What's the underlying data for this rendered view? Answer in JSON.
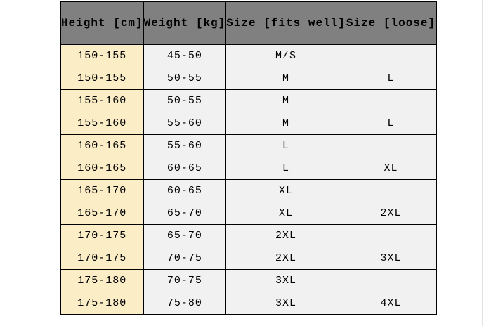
{
  "table": {
    "columns": [
      {
        "label": "Height [cm]"
      },
      {
        "label": "Weight [kg]"
      },
      {
        "label": "Size [fits well]"
      },
      {
        "label": "Size [loose]"
      }
    ],
    "rows": [
      [
        "150-155",
        "45-50",
        "M/S",
        ""
      ],
      [
        "150-155",
        "50-55",
        "M",
        "L"
      ],
      [
        "155-160",
        "50-55",
        "M",
        ""
      ],
      [
        "155-160",
        "55-60",
        "M",
        "L"
      ],
      [
        "160-165",
        "55-60",
        "L",
        ""
      ],
      [
        "160-165",
        "60-65",
        "L",
        "XL"
      ],
      [
        "165-170",
        "60-65",
        "XL",
        ""
      ],
      [
        "165-170",
        "65-70",
        "XL",
        "2XL"
      ],
      [
        "170-175",
        "65-70",
        "2XL",
        ""
      ],
      [
        "170-175",
        "70-75",
        "2XL",
        "3XL"
      ],
      [
        "175-180",
        "70-75",
        "3XL",
        ""
      ],
      [
        "175-180",
        "75-80",
        "3XL",
        "4XL"
      ]
    ],
    "colors": {
      "header_bg": "#808080",
      "header_text": "#000000",
      "height_column_bg": "#fbeec6",
      "cell_bg": "#f1f1f1",
      "border": "#000000",
      "page_bg": "#ffffff",
      "right_edge_line": "#e3e3e3"
    }
  }
}
